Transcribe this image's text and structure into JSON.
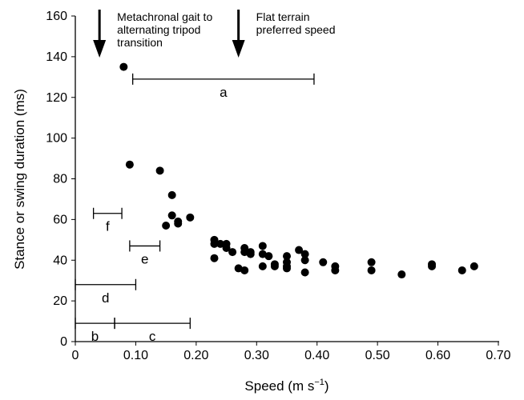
{
  "chart_data": {
    "type": "scatter",
    "x_label": [
      "Speed (m s",
      "−1",
      ")"
    ],
    "y_label": "Stance or swing duration (ms)",
    "color": "#000000",
    "x": [
      0.08,
      0.09,
      0.14,
      0.16,
      0.16,
      0.15,
      0.17,
      0.17,
      0.19,
      0.23,
      0.23,
      0.23,
      0.24,
      0.25,
      0.25,
      0.26,
      0.27,
      0.28,
      0.28,
      0.28,
      0.29,
      0.29,
      0.31,
      0.31,
      0.31,
      0.32,
      0.33,
      0.33,
      0.35,
      0.35,
      0.35,
      0.35,
      0.37,
      0.38,
      0.38,
      0.38,
      0.41,
      0.43,
      0.43,
      0.49,
      0.49,
      0.54,
      0.59,
      0.59,
      0.64,
      0.66
    ],
    "values": [
      135,
      87,
      84,
      72,
      62,
      57,
      59,
      58,
      61,
      50,
      48,
      41,
      48,
      48,
      46,
      44,
      36,
      46,
      44,
      35,
      44,
      43,
      47,
      43,
      37,
      42,
      38,
      37,
      42,
      39,
      37,
      36,
      45,
      43,
      40,
      34,
      39,
      37,
      35,
      39,
      35,
      33,
      38,
      37,
      35,
      37
    ],
    "xlim": [
      0,
      0.7
    ],
    "ylim": [
      0,
      160
    ],
    "xticks": [
      0,
      {
        "value": 0.1,
        "label": "0.10"
      },
      {
        "value": 0.2,
        "label": "0.20"
      },
      {
        "value": 0.3,
        "label": "0.30"
      },
      {
        "value": 0.4,
        "label": "0.40"
      },
      {
        "value": 0.5,
        "label": "0.50"
      },
      {
        "value": 0.6,
        "label": "0.60"
      },
      {
        "value": 0.7,
        "label": "0.70"
      }
    ],
    "yticks": [
      0,
      20,
      40,
      60,
      80,
      100,
      120,
      140,
      160
    ],
    "ranges": [
      {
        "label": "a",
        "start": 0.095,
        "end": 0.395,
        "y": 129
      },
      {
        "label": "f",
        "start": 0.03,
        "end": 0.077,
        "y": 63
      },
      {
        "label": "e",
        "start": 0.09,
        "end": 0.14,
        "y": 47
      },
      {
        "label": "d",
        "start": 0,
        "end": 0.1,
        "y": 28
      },
      {
        "label": "b",
        "start": 0,
        "end": 0.065,
        "y": 9
      },
      {
        "label": "c",
        "start": 0.065,
        "end": 0.19,
        "y": 9
      }
    ],
    "arrows": [
      {
        "x": 0.04,
        "text": [
          "Metachronal gait to",
          "alternating tripod",
          "transition"
        ]
      },
      {
        "x": 0.27,
        "text": [
          "Flat terrain",
          "preferred speed"
        ]
      }
    ]
  }
}
